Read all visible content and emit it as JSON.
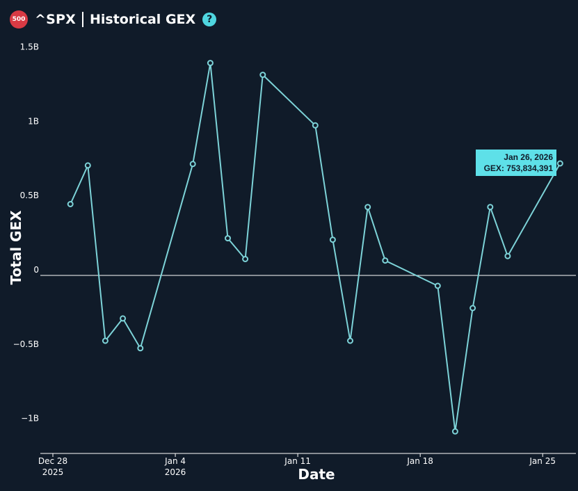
{
  "header": {
    "badge": "500",
    "ticker": "^SPX",
    "title": "Historical GEX",
    "help_icon": "?"
  },
  "colors": {
    "background": "#101b29",
    "line": "#7dd3d8",
    "badge": "#d83a44",
    "help": "#4fd6e0",
    "tooltip": "#5ee0e8"
  },
  "tooltip": {
    "date": "Jan 26, 2026",
    "value": "GEX: 753,834,391"
  },
  "chart_data": {
    "type": "line",
    "title": "",
    "xlabel": "Date",
    "ylabel": "Total GEX",
    "ylim": [
      -1.2,
      1.55
    ],
    "y_unit": "B",
    "zero_line": true,
    "grid": false,
    "y_ticks": [
      {
        "value": 1.5,
        "label": "1.5B"
      },
      {
        "value": 1.0,
        "label": "1B"
      },
      {
        "value": 0.5,
        "label": "0.5B"
      },
      {
        "value": 0,
        "label": "0"
      },
      {
        "value": -0.5,
        "label": "−0.5B"
      },
      {
        "value": -1.0,
        "label": "−1B"
      }
    ],
    "x_ticks": [
      {
        "date": "2025-12-28",
        "label": "Dec 28",
        "sublabel": "2025"
      },
      {
        "date": "2026-01-04",
        "label": "Jan 4",
        "sublabel": "2026"
      },
      {
        "date": "2026-01-11",
        "label": "Jan 11",
        "sublabel": ""
      },
      {
        "date": "2026-01-18",
        "label": "Jan 18",
        "sublabel": ""
      },
      {
        "date": "2026-01-25",
        "label": "Jan 25",
        "sublabel": ""
      }
    ],
    "series": [
      {
        "x": [
          "2025-12-29",
          "2025-12-30",
          "2025-12-31",
          "2026-01-01",
          "2026-01-02",
          "2026-01-05",
          "2026-01-06",
          "2026-01-07",
          "2026-01-08",
          "2026-01-09",
          "2026-01-12",
          "2026-01-13",
          "2026-01-14",
          "2026-01-15",
          "2026-01-16",
          "2026-01-19",
          "2026-01-20",
          "2026-01-21",
          "2026-01-22",
          "2026-01-23",
          "2026-01-26"
        ],
        "values": [
          0.48,
          0.74,
          -0.44,
          -0.29,
          -0.49,
          0.75,
          1.43,
          0.25,
          0.11,
          1.35,
          1.01,
          0.24,
          -0.44,
          0.46,
          0.1,
          -0.07,
          -1.05,
          -0.22,
          0.46,
          0.13,
          0.753834391
        ]
      }
    ]
  }
}
